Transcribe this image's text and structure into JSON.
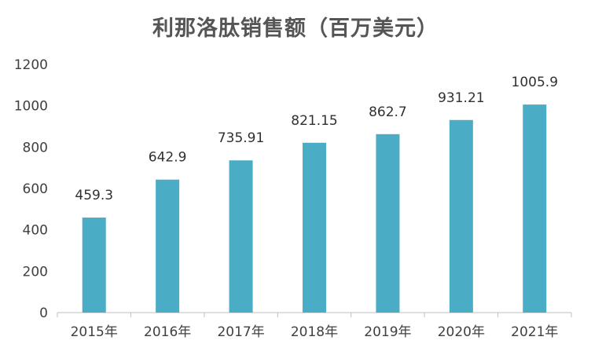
{
  "chart_data": {
    "type": "bar",
    "title": "利那洛肽销售额（百万美元）",
    "xlabel": "",
    "ylabel": "",
    "categories": [
      "2015年",
      "2016年",
      "2017年",
      "2018年",
      "2019年",
      "2020年",
      "2021年"
    ],
    "values": [
      459.3,
      642.9,
      735.91,
      821.15,
      862.7,
      931.21,
      1005.9
    ],
    "value_labels": [
      "459.3",
      "642.9",
      "735.91",
      "821.15",
      "862.7",
      "931.21",
      "1005.9"
    ],
    "ylim": [
      0,
      1200
    ],
    "yticks": [
      "0",
      "200",
      "400",
      "600",
      "800",
      "1000",
      "1200"
    ],
    "grid": false,
    "legend": "none",
    "bar_color": "#4bacc6"
  }
}
